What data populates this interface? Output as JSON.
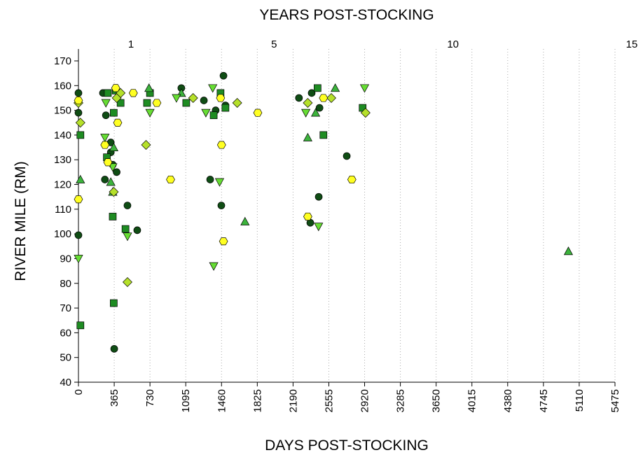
{
  "chart_data": {
    "type": "scatter",
    "title": "YEARS POST-STOCKING",
    "x_label": "DAYS POST-STOCKING",
    "y_label": "RIVER MILE (RM)",
    "xlim": [
      0,
      5475
    ],
    "xticks": [
      0,
      365,
      730,
      1095,
      1460,
      1825,
      2190,
      2555,
      2920,
      3285,
      3650,
      4015,
      4380,
      4745,
      5110,
      5475
    ],
    "ylim": [
      40,
      170
    ],
    "yticks": [
      40,
      50,
      60,
      70,
      80,
      90,
      100,
      110,
      120,
      130,
      140,
      150,
      160,
      170
    ],
    "x2ticks": [
      1,
      5,
      10,
      15
    ],
    "grid": true,
    "series": [
      {
        "marker": "circle",
        "color": "#0f4d14",
        "x": [
          0,
          0,
          0,
          250,
          280,
          270,
          330,
          330,
          365,
          350,
          390,
          500,
          600,
          1050,
          1280,
          1344,
          1458,
          1480,
          1400,
          1500,
          2250,
          2366,
          2452,
          2460,
          2738,
          2380
        ],
        "values": [
          157,
          149,
          99.5,
          157,
          148,
          122,
          137,
          133,
          53.5,
          128,
          125,
          111.5,
          101.5,
          159,
          154,
          122,
          111.5,
          164,
          150,
          152,
          155,
          104.5,
          115,
          151,
          131.5,
          157
        ]
      },
      {
        "marker": "square",
        "color": "#1e8c22",
        "x": [
          20,
          20,
          350,
          360,
          290,
          300,
          360,
          380,
          430,
          480,
          700,
          730,
          1100,
          1380,
          1450,
          1500,
          2500,
          2900,
          2440
        ],
        "values": [
          140,
          63,
          107,
          72,
          131,
          157,
          149,
          158,
          153,
          102,
          153,
          157,
          153,
          148,
          157,
          151,
          140,
          151,
          159
        ]
      },
      {
        "marker": "triangle-up",
        "color": "#3cb33c",
        "x": [
          20,
          330,
          350,
          360,
          720,
          1050,
          1700,
          2340,
          2420,
          2620,
          5000
        ],
        "values": [
          122,
          121,
          117,
          135,
          159,
          157,
          105,
          139,
          149,
          159,
          93
        ]
      },
      {
        "marker": "triangle-down",
        "color": "#66dd33",
        "x": [
          0,
          270,
          350,
          500,
          730,
          1300,
          1380,
          1440,
          1370,
          2320,
          2450,
          2920,
          1000,
          280
        ],
        "values": [
          90,
          139,
          127,
          99,
          149,
          149,
          87,
          121,
          159,
          149,
          103,
          159,
          155,
          153
        ]
      },
      {
        "marker": "diamond",
        "color": "#b5e02a",
        "x": [
          20,
          360,
          500,
          690,
          390,
          1170,
          1620,
          2340,
          2580,
          2930,
          430,
          0
        ],
        "values": [
          145,
          117,
          80.5,
          136,
          155,
          155,
          153,
          153,
          155,
          149,
          157,
          153
        ]
      },
      {
        "marker": "hexagon",
        "color": "#ffff22",
        "x": [
          0,
          0,
          270,
          300,
          380,
          400,
          560,
          940,
          1460,
          1480,
          1830,
          2340,
          2790,
          1450,
          2500,
          800
        ],
        "values": [
          114,
          154,
          136,
          129,
          159,
          145,
          157,
          122,
          136,
          97,
          149,
          107,
          122,
          155,
          155,
          153
        ]
      }
    ]
  }
}
